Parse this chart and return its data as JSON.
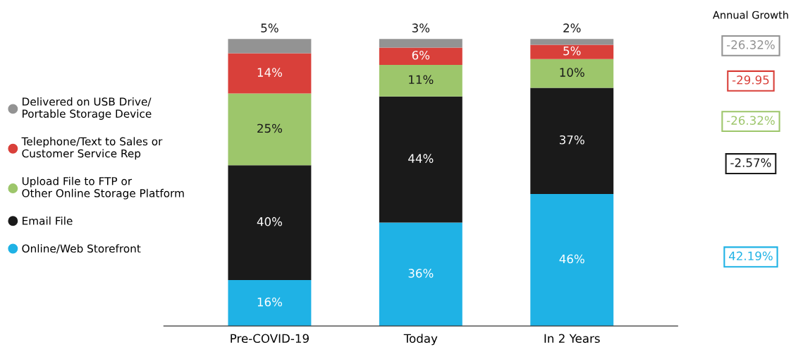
{
  "chart_data": {
    "type": "bar",
    "stacked": true,
    "categories": [
      "Pre-COVID-19",
      "Today",
      "In 2 Years"
    ],
    "series": [
      {
        "name": "Online/Web Storefront",
        "color": "#1fb2e5",
        "values": [
          16,
          36,
          46
        ],
        "value_labels": [
          "16%",
          "36%",
          "46%"
        ]
      },
      {
        "name": "Email File",
        "color": "#1a1a1a",
        "values": [
          40,
          44,
          37
        ],
        "value_labels": [
          "40%",
          "44%",
          "37%"
        ]
      },
      {
        "name": "Upload File to FTP or\nOther Online Storage Platform",
        "color": "#9dc66b",
        "values": [
          25,
          11,
          10
        ],
        "value_labels": [
          "25%",
          "11%",
          "10%"
        ]
      },
      {
        "name": "Telephone/Text to Sales or\nCustomer Service Rep",
        "color": "#d9403a",
        "values": [
          14,
          6,
          5
        ],
        "value_labels": [
          "14%",
          "6%",
          "5%"
        ]
      },
      {
        "name": "Delivered on USB Drive/\nPortable Storage Device",
        "color": "#939393",
        "values": [
          5,
          3,
          2
        ],
        "value_labels": [
          "5%",
          "3%",
          "2%"
        ]
      }
    ],
    "annotations": [
      "Annual Growth",
      "-26.32%",
      "-29.95",
      "-26.32%",
      "-2.57%",
      "42.19%"
    ],
    "legend": "left",
    "tick_labels": "x",
    "grid": false
  }
}
